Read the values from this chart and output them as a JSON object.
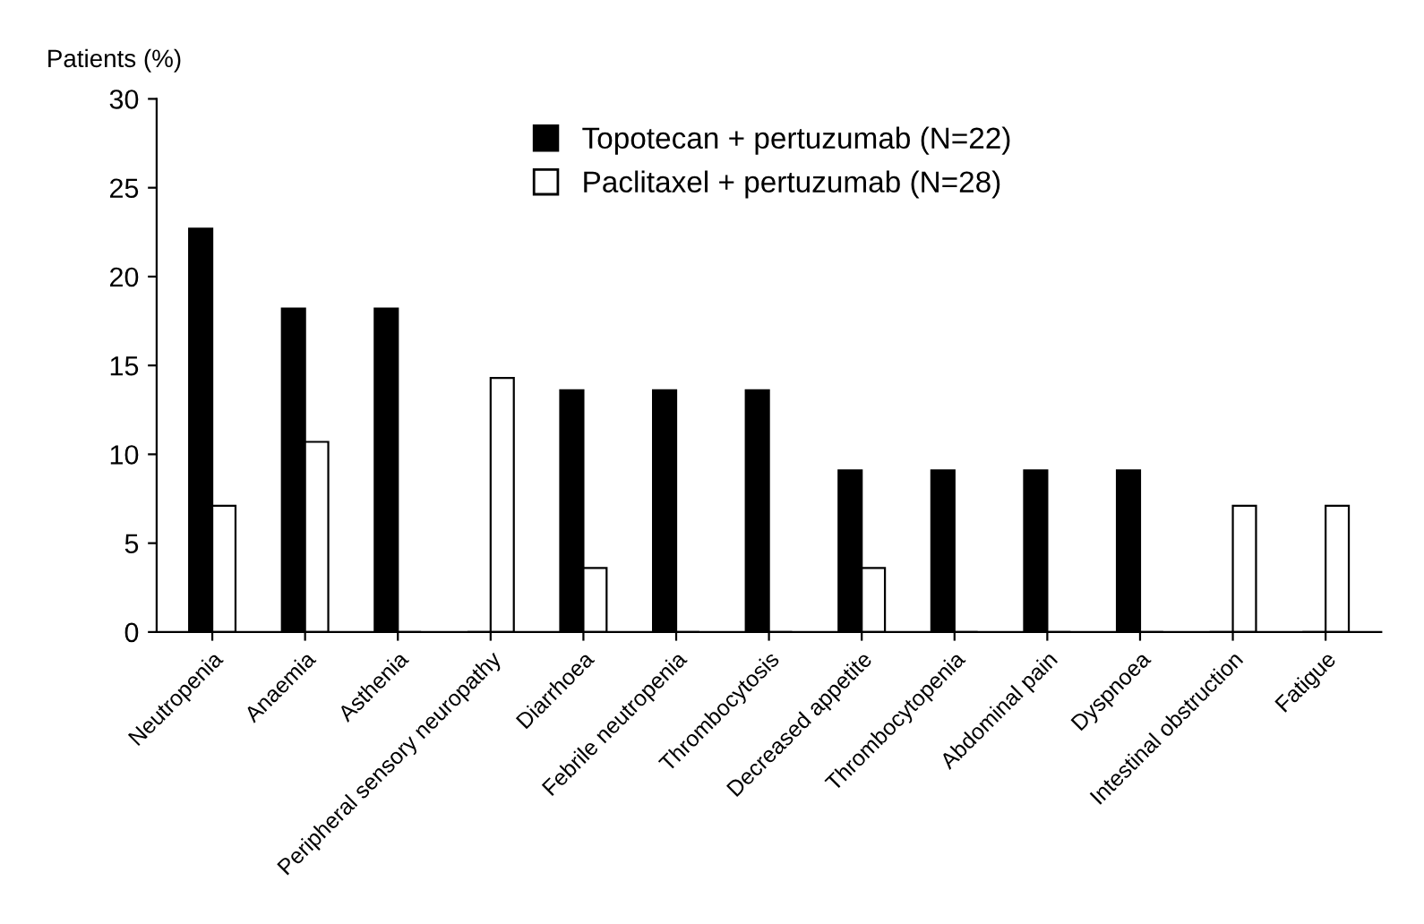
{
  "chart_data": {
    "type": "bar",
    "ylabel": "Patients (%)",
    "categories": [
      "Neutropenia",
      "Anaemia",
      "Asthenia",
      "Peripheral sensory neuropathy",
      "Diarrhoea",
      "Febrile neutropenia",
      "Thrombocytosis",
      "Decreased appetite",
      "Thrombocytopenia",
      "Abdominal pain",
      "Dyspnoea",
      "Intestinal obstruction",
      "Fatigue"
    ],
    "series": [
      {
        "name": "Topotecan + pertuzumab (N=22)",
        "color": "#000000",
        "values": [
          22.7,
          18.2,
          18.2,
          0,
          13.6,
          13.6,
          13.6,
          9.1,
          9.1,
          9.1,
          9.1,
          0,
          0
        ]
      },
      {
        "name": "Paclitaxel + pertuzumab (N=28)",
        "color": "#ffffff",
        "values": [
          7.1,
          10.7,
          0,
          14.3,
          3.6,
          0,
          0,
          3.6,
          0,
          0,
          0,
          7.1,
          7.1
        ]
      }
    ],
    "ylim": [
      0,
      30
    ],
    "yticks": [
      0,
      5,
      10,
      15,
      20,
      25,
      30
    ],
    "grid": false,
    "legend": "top right"
  }
}
